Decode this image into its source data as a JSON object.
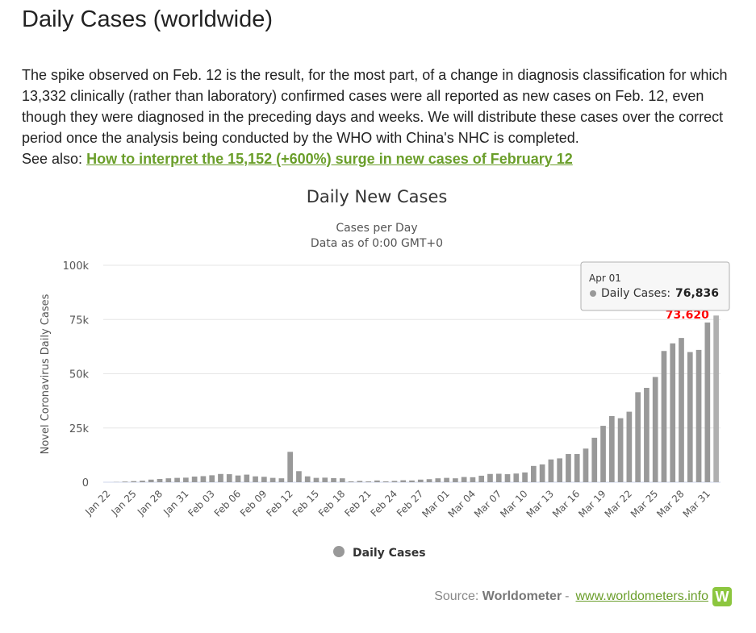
{
  "page": {
    "title": "Daily Cases (worldwide)",
    "notice_text": "The spike observed on Feb. 12 is the result, for the most part, of a change in diagnosis classification for which 13,332 clinically (rather than laboratory) confirmed cases were all reported as new cases on Feb. 12, even though they were diagnosed in the preceding days and weeks. We will distribute these cases over the correct period once the analysis being conducted by the WHO with China's NHC is completed.",
    "see_also_label": "See also:",
    "see_also_link": "How to interpret the 15,152 (+600%) surge in new cases of February 12"
  },
  "chart_data": {
    "type": "bar",
    "title": "Daily New Cases",
    "subtitle_lines": [
      "Cases per Day",
      "Data as of 0:00 GMT+0"
    ],
    "ylabel": "Novel Coronavirus Daily Cases",
    "ylim": [
      0,
      100000
    ],
    "yticks": [
      {
        "value": 0,
        "label": "0"
      },
      {
        "value": 25000,
        "label": "25k"
      },
      {
        "value": 50000,
        "label": "50k"
      },
      {
        "value": 75000,
        "label": "75k"
      },
      {
        "value": 100000,
        "label": "100k"
      }
    ],
    "grid": true,
    "legend": {
      "position": "bottom-center",
      "label": "Daily Cases"
    },
    "series_color": "#999999",
    "highlight_color": "#b0b0b0",
    "categories": [
      "Jan 22",
      "Jan 23",
      "Jan 24",
      "Jan 25",
      "Jan 26",
      "Jan 27",
      "Jan 28",
      "Jan 29",
      "Jan 30",
      "Jan 31",
      "Feb 01",
      "Feb 02",
      "Feb 03",
      "Feb 04",
      "Feb 05",
      "Feb 06",
      "Feb 07",
      "Feb 08",
      "Feb 09",
      "Feb 10",
      "Feb 11",
      "Feb 12",
      "Feb 13",
      "Feb 14",
      "Feb 15",
      "Feb 16",
      "Feb 17",
      "Feb 18",
      "Feb 19",
      "Feb 20",
      "Feb 21",
      "Feb 22",
      "Feb 23",
      "Feb 24",
      "Feb 25",
      "Feb 26",
      "Feb 27",
      "Feb 28",
      "Feb 29",
      "Mar 01",
      "Mar 02",
      "Mar 03",
      "Mar 04",
      "Mar 05",
      "Mar 06",
      "Mar 07",
      "Mar 08",
      "Mar 09",
      "Mar 10",
      "Mar 11",
      "Mar 12",
      "Mar 13",
      "Mar 14",
      "Mar 15",
      "Mar 16",
      "Mar 17",
      "Mar 18",
      "Mar 19",
      "Mar 20",
      "Mar 21",
      "Mar 22",
      "Mar 23",
      "Mar 24",
      "Mar 25",
      "Mar 26",
      "Mar 27",
      "Mar 28",
      "Mar 29",
      "Mar 30",
      "Mar 31",
      "Apr 01"
    ],
    "xtick_labels": [
      "Jan 22",
      "Jan 25",
      "Jan 28",
      "Jan 31",
      "Feb 03",
      "Feb 06",
      "Feb 09",
      "Feb 12",
      "Feb 15",
      "Feb 18",
      "Feb 21",
      "Feb 24",
      "Feb 27",
      "Mar 01",
      "Mar 04",
      "Mar 07",
      "Mar 10",
      "Mar 13",
      "Mar 16",
      "Mar 19",
      "Mar 22",
      "Mar 25",
      "Mar 28",
      "Mar 31"
    ],
    "values": [
      0,
      100,
      300,
      500,
      700,
      1200,
      1500,
      1800,
      2000,
      2100,
      2600,
      2800,
      3200,
      3800,
      3700,
      3100,
      3500,
      2700,
      2500,
      2000,
      1800,
      14000,
      5100,
      2700,
      2000,
      2100,
      1900,
      1800,
      400,
      600,
      400,
      800,
      400,
      600,
      900,
      800,
      1200,
      1400,
      1800,
      2000,
      1800,
      2400,
      2300,
      3000,
      3800,
      3900,
      3700,
      4000,
      4500,
      7500,
      8200,
      10500,
      11000,
      13000,
      13000,
      15500,
      20500,
      26000,
      30500,
      29500,
      32500,
      41500,
      43500,
      48500,
      60500,
      64000,
      66500,
      60000,
      61000,
      73620,
      76836
    ],
    "data_labels": [
      {
        "category": "Mar 31",
        "label": "73.620",
        "color": "#ff0000"
      }
    ],
    "tooltip": {
      "date": "Apr 01",
      "series_label": "Daily Cases:",
      "value_text": "76,836"
    }
  },
  "source": {
    "prefix": "Source:",
    "name": "Worldometer",
    "separator": "-",
    "url_text": "www.worldometers.info",
    "logo_letter": "W"
  }
}
